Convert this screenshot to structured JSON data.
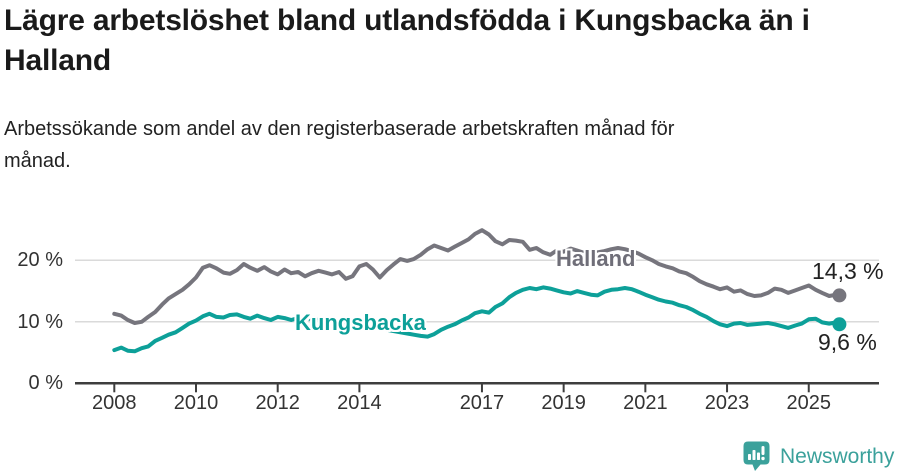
{
  "header": {
    "title": "Lägre arbetslöshet bland utlandsfödda i Kungsbacka än i Halland",
    "subtitle": "Arbetssökande som andel av den registerbaserade arbetskraften månad för månad."
  },
  "footer": {
    "brand": "Newsworthy"
  },
  "colors": {
    "halland": "#76757D",
    "kungsbacka": "#0DA099",
    "axis": "#3d3d3d",
    "gridline": "#dadada",
    "brand_teal": "#3BA19B"
  },
  "chart_data": {
    "type": "line",
    "title": "Lägre arbetslöshet bland utlandsfödda i Kungsbacka än i Halland",
    "subtitle": "Arbetssökande som andel av den registerbaserade arbetskraften månad för månad.",
    "unit": "%",
    "x_range": [
      2008,
      2025.75
    ],
    "ylim": [
      0,
      26
    ],
    "grid": "horizontal",
    "yticks": [
      {
        "value": 0,
        "label": "0 %"
      },
      {
        "value": 10,
        "label": "10 %"
      },
      {
        "value": 20,
        "label": "20 %"
      }
    ],
    "xticks": [
      {
        "year": 2008,
        "label": "2008"
      },
      {
        "year": 2010,
        "label": "2010"
      },
      {
        "year": 2012,
        "label": "2012"
      },
      {
        "year": 2014,
        "label": "2014"
      },
      {
        "year": 2017,
        "label": "2017"
      },
      {
        "year": 2019,
        "label": "2019"
      },
      {
        "year": 2021,
        "label": "2021"
      },
      {
        "year": 2023,
        "label": "2023"
      },
      {
        "year": 2025,
        "label": "2025"
      }
    ],
    "series": [
      {
        "name": "Halland",
        "color": "#76757D",
        "end_label": "14,3 %",
        "end_value": 14.3,
        "points": [
          [
            2008.0,
            11.3
          ],
          [
            2008.17,
            11.0
          ],
          [
            2008.33,
            10.3
          ],
          [
            2008.5,
            9.8
          ],
          [
            2008.67,
            10.0
          ],
          [
            2008.83,
            10.8
          ],
          [
            2009.0,
            11.6
          ],
          [
            2009.17,
            12.8
          ],
          [
            2009.33,
            13.8
          ],
          [
            2009.5,
            14.5
          ],
          [
            2009.67,
            15.2
          ],
          [
            2009.83,
            16.1
          ],
          [
            2010.0,
            17.2
          ],
          [
            2010.17,
            18.8
          ],
          [
            2010.33,
            19.2
          ],
          [
            2010.5,
            18.7
          ],
          [
            2010.67,
            18.0
          ],
          [
            2010.83,
            17.8
          ],
          [
            2011.0,
            18.4
          ],
          [
            2011.17,
            19.4
          ],
          [
            2011.33,
            18.8
          ],
          [
            2011.5,
            18.3
          ],
          [
            2011.67,
            18.9
          ],
          [
            2011.83,
            18.2
          ],
          [
            2012.0,
            17.7
          ],
          [
            2012.17,
            18.5
          ],
          [
            2012.33,
            17.9
          ],
          [
            2012.5,
            18.1
          ],
          [
            2012.67,
            17.4
          ],
          [
            2012.83,
            17.9
          ],
          [
            2013.0,
            18.3
          ],
          [
            2013.17,
            18.0
          ],
          [
            2013.33,
            17.7
          ],
          [
            2013.5,
            18.1
          ],
          [
            2013.67,
            17.0
          ],
          [
            2013.83,
            17.4
          ],
          [
            2014.0,
            19.0
          ],
          [
            2014.17,
            19.4
          ],
          [
            2014.33,
            18.5
          ],
          [
            2014.5,
            17.2
          ],
          [
            2014.67,
            18.4
          ],
          [
            2014.83,
            19.3
          ],
          [
            2015.0,
            20.2
          ],
          [
            2015.17,
            19.9
          ],
          [
            2015.33,
            20.2
          ],
          [
            2015.5,
            20.9
          ],
          [
            2015.67,
            21.8
          ],
          [
            2015.83,
            22.4
          ],
          [
            2016.0,
            22.0
          ],
          [
            2016.17,
            21.6
          ],
          [
            2016.33,
            22.2
          ],
          [
            2016.5,
            22.8
          ],
          [
            2016.67,
            23.4
          ],
          [
            2016.83,
            24.3
          ],
          [
            2017.0,
            24.9
          ],
          [
            2017.17,
            24.2
          ],
          [
            2017.33,
            23.1
          ],
          [
            2017.5,
            22.6
          ],
          [
            2017.67,
            23.3
          ],
          [
            2017.83,
            23.2
          ],
          [
            2018.0,
            23.0
          ],
          [
            2018.17,
            21.7
          ],
          [
            2018.33,
            22.0
          ],
          [
            2018.5,
            21.3
          ],
          [
            2018.67,
            20.9
          ],
          [
            2018.83,
            21.6
          ],
          [
            2019.0,
            21.4
          ],
          [
            2019.17,
            21.9
          ],
          [
            2019.33,
            21.6
          ],
          [
            2019.5,
            21.2
          ],
          [
            2019.67,
            21.0
          ],
          [
            2019.83,
            21.3
          ],
          [
            2020.0,
            21.5
          ],
          [
            2020.17,
            21.8
          ],
          [
            2020.33,
            22.0
          ],
          [
            2020.5,
            21.8
          ],
          [
            2020.67,
            21.5
          ],
          [
            2020.83,
            21.1
          ],
          [
            2021.0,
            20.5
          ],
          [
            2021.17,
            20.0
          ],
          [
            2021.33,
            19.4
          ],
          [
            2021.5,
            19.0
          ],
          [
            2021.67,
            18.7
          ],
          [
            2021.83,
            18.2
          ],
          [
            2022.0,
            17.9
          ],
          [
            2022.17,
            17.3
          ],
          [
            2022.33,
            16.6
          ],
          [
            2022.5,
            16.1
          ],
          [
            2022.67,
            15.7
          ],
          [
            2022.83,
            15.3
          ],
          [
            2023.0,
            15.6
          ],
          [
            2023.17,
            14.9
          ],
          [
            2023.33,
            15.1
          ],
          [
            2023.5,
            14.5
          ],
          [
            2023.67,
            14.2
          ],
          [
            2023.83,
            14.3
          ],
          [
            2024.0,
            14.7
          ],
          [
            2024.17,
            15.4
          ],
          [
            2024.33,
            15.2
          ],
          [
            2024.5,
            14.7
          ],
          [
            2024.67,
            15.1
          ],
          [
            2024.83,
            15.5
          ],
          [
            2025.0,
            15.9
          ],
          [
            2025.17,
            15.2
          ],
          [
            2025.33,
            14.7
          ],
          [
            2025.5,
            14.2
          ],
          [
            2025.67,
            14.4
          ],
          [
            2025.75,
            14.3
          ]
        ]
      },
      {
        "name": "Kungsbacka",
        "color": "#0DA099",
        "end_label": "9,6 %",
        "end_value": 9.6,
        "points": [
          [
            2008.0,
            5.4
          ],
          [
            2008.17,
            5.8
          ],
          [
            2008.33,
            5.3
          ],
          [
            2008.5,
            5.2
          ],
          [
            2008.67,
            5.7
          ],
          [
            2008.83,
            6.0
          ],
          [
            2009.0,
            6.9
          ],
          [
            2009.17,
            7.4
          ],
          [
            2009.33,
            7.9
          ],
          [
            2009.5,
            8.3
          ],
          [
            2009.67,
            9.0
          ],
          [
            2009.83,
            9.7
          ],
          [
            2010.0,
            10.2
          ],
          [
            2010.17,
            10.9
          ],
          [
            2010.33,
            11.3
          ],
          [
            2010.5,
            10.8
          ],
          [
            2010.67,
            10.7
          ],
          [
            2010.83,
            11.1
          ],
          [
            2011.0,
            11.2
          ],
          [
            2011.17,
            10.8
          ],
          [
            2011.33,
            10.5
          ],
          [
            2011.5,
            11.0
          ],
          [
            2011.67,
            10.6
          ],
          [
            2011.83,
            10.3
          ],
          [
            2012.0,
            10.8
          ],
          [
            2012.17,
            10.6
          ],
          [
            2012.33,
            10.3
          ],
          [
            2012.5,
            10.6
          ],
          [
            2012.67,
            10.7
          ],
          [
            2012.83,
            10.4
          ],
          [
            2013.0,
            10.3
          ],
          [
            2013.17,
            10.4
          ],
          [
            2013.33,
            10.3
          ],
          [
            2013.5,
            10.1
          ],
          [
            2013.67,
            9.9
          ],
          [
            2013.83,
            9.7
          ],
          [
            2014.0,
            9.6
          ],
          [
            2014.17,
            9.4
          ],
          [
            2014.33,
            9.1
          ],
          [
            2014.5,
            8.9
          ],
          [
            2014.67,
            8.7
          ],
          [
            2014.83,
            8.5
          ],
          [
            2015.0,
            8.3
          ],
          [
            2015.17,
            8.1
          ],
          [
            2015.33,
            7.9
          ],
          [
            2015.5,
            7.7
          ],
          [
            2015.67,
            7.6
          ],
          [
            2015.83,
            8.0
          ],
          [
            2016.0,
            8.7
          ],
          [
            2016.17,
            9.2
          ],
          [
            2016.33,
            9.6
          ],
          [
            2016.5,
            10.2
          ],
          [
            2016.67,
            10.7
          ],
          [
            2016.83,
            11.4
          ],
          [
            2017.0,
            11.7
          ],
          [
            2017.17,
            11.5
          ],
          [
            2017.33,
            12.4
          ],
          [
            2017.5,
            13.0
          ],
          [
            2017.67,
            14.0
          ],
          [
            2017.83,
            14.7
          ],
          [
            2018.0,
            15.2
          ],
          [
            2018.17,
            15.5
          ],
          [
            2018.33,
            15.3
          ],
          [
            2018.5,
            15.6
          ],
          [
            2018.67,
            15.4
          ],
          [
            2018.83,
            15.1
          ],
          [
            2019.0,
            14.8
          ],
          [
            2019.17,
            14.6
          ],
          [
            2019.33,
            15.0
          ],
          [
            2019.5,
            14.7
          ],
          [
            2019.67,
            14.4
          ],
          [
            2019.83,
            14.3
          ],
          [
            2020.0,
            14.9
          ],
          [
            2020.17,
            15.2
          ],
          [
            2020.33,
            15.3
          ],
          [
            2020.5,
            15.5
          ],
          [
            2020.67,
            15.3
          ],
          [
            2020.83,
            14.9
          ],
          [
            2021.0,
            14.4
          ],
          [
            2021.17,
            14.0
          ],
          [
            2021.33,
            13.6
          ],
          [
            2021.5,
            13.3
          ],
          [
            2021.67,
            13.1
          ],
          [
            2021.83,
            12.7
          ],
          [
            2022.0,
            12.4
          ],
          [
            2022.17,
            11.9
          ],
          [
            2022.33,
            11.3
          ],
          [
            2022.5,
            10.8
          ],
          [
            2022.67,
            10.1
          ],
          [
            2022.83,
            9.6
          ],
          [
            2023.0,
            9.3
          ],
          [
            2023.17,
            9.7
          ],
          [
            2023.33,
            9.8
          ],
          [
            2023.5,
            9.5
          ],
          [
            2023.67,
            9.6
          ],
          [
            2023.83,
            9.7
          ],
          [
            2024.0,
            9.8
          ],
          [
            2024.17,
            9.6
          ],
          [
            2024.33,
            9.3
          ],
          [
            2024.5,
            9.0
          ],
          [
            2024.67,
            9.4
          ],
          [
            2024.83,
            9.7
          ],
          [
            2025.0,
            10.4
          ],
          [
            2025.17,
            10.5
          ],
          [
            2025.33,
            9.9
          ],
          [
            2025.5,
            9.7
          ],
          [
            2025.67,
            9.9
          ],
          [
            2025.75,
            9.6
          ]
        ]
      }
    ],
    "legend_position": "inline-labels"
  }
}
